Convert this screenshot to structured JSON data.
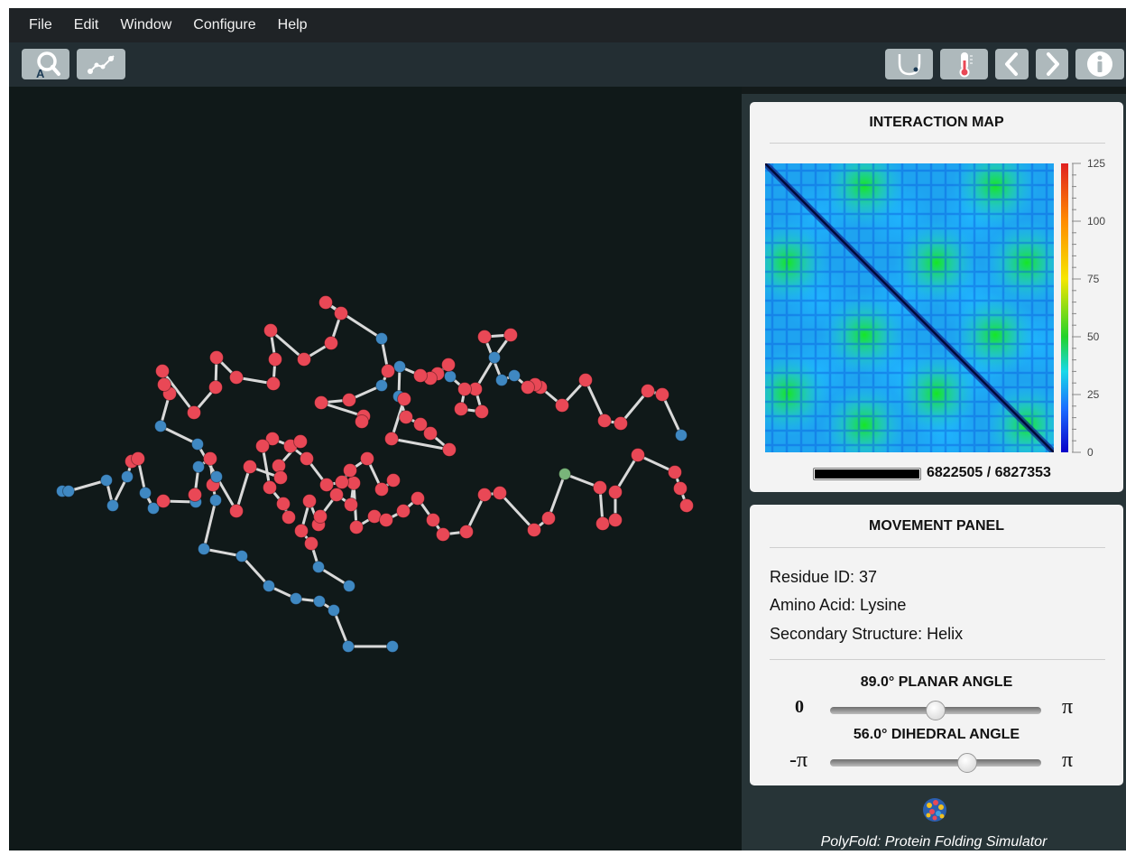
{
  "menubar": {
    "items": [
      "File",
      "Edit",
      "Window",
      "Configure",
      "Help"
    ]
  },
  "toolbar": {
    "left": [
      {
        "icon": "search-atom-icon"
      },
      {
        "icon": "chain-path-icon"
      }
    ],
    "right": [
      {
        "icon": "energy-well-icon"
      },
      {
        "icon": "thermometer-icon"
      },
      {
        "icon": "chevron-left-icon"
      },
      {
        "icon": "chevron-right-icon"
      },
      {
        "icon": "info-icon"
      }
    ]
  },
  "interaction_map": {
    "title": "INTERACTION MAP",
    "colorbar_ticks": [
      "125",
      "100",
      "75",
      "50",
      "25",
      "0"
    ],
    "progress_text": "6822505 / 6827353",
    "progress_fraction": 0.9993
  },
  "movement_panel": {
    "title": "MOVEMENT PANEL",
    "residue_line": "Residue ID: 37",
    "amino_line": "Amino Acid: Lysine",
    "structure_line": "Secondary Structure: Helix",
    "planar": {
      "title": "89.0° PLANAR ANGLE",
      "min_label": "0",
      "max_label": "π",
      "value_fraction": 0.5
    },
    "dihedral": {
      "title": "56.0° DIHEDRAL ANGLE",
      "min_label": "-π",
      "max_label": "π",
      "value_fraction": 0.65
    }
  },
  "footer": {
    "caption": "PolyFold: Protein Folding Simulator"
  },
  "colors": {
    "helix_residue": "#e94856",
    "coil_residue": "#3f88c2",
    "selected_residue": "#79b57a",
    "bond": "#d9d9d9"
  }
}
